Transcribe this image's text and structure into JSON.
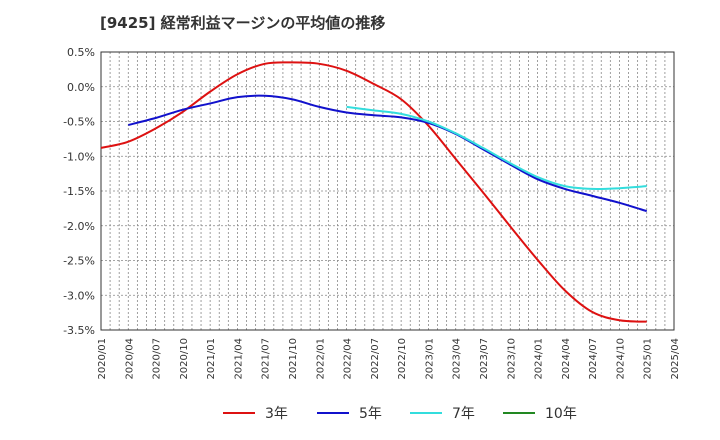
{
  "chart_data": {
    "type": "line",
    "title": "[9425]  経常利益マージンの平均値の推移",
    "xlabel": "",
    "ylabel": "",
    "ylim": [
      -3.5,
      0.5
    ],
    "yticks": [
      "0.5%",
      "0.0%",
      "-0.5%",
      "-1.0%",
      "-1.5%",
      "-2.0%",
      "-2.5%",
      "-3.0%",
      "-3.5%"
    ],
    "xticks": [
      "2020/01",
      "2020/04",
      "2020/07",
      "2020/10",
      "2021/01",
      "2021/04",
      "2021/07",
      "2021/10",
      "2022/01",
      "2022/04",
      "2022/07",
      "2022/10",
      "2023/01",
      "2023/04",
      "2023/07",
      "2023/10",
      "2024/01",
      "2024/04",
      "2024/07",
      "2024/10",
      "2025/01",
      "2025/04"
    ],
    "grid": true,
    "legend_position": "bottom",
    "series": [
      {
        "name": "3年",
        "color": "#dd1111",
        "points": [
          [
            "2020/01",
            -0.88
          ],
          [
            "2020/04",
            -0.79
          ],
          [
            "2020/07",
            -0.6
          ],
          [
            "2020/10",
            -0.36
          ],
          [
            "2021/01",
            -0.07
          ],
          [
            "2021/04",
            0.18
          ],
          [
            "2021/07",
            0.33
          ],
          [
            "2021/10",
            0.35
          ],
          [
            "2022/01",
            0.33
          ],
          [
            "2022/04",
            0.23
          ],
          [
            "2022/07",
            0.04
          ],
          [
            "2022/10",
            -0.18
          ],
          [
            "2023/01",
            -0.56
          ],
          [
            "2023/04",
            -1.04
          ],
          [
            "2023/07",
            -1.52
          ],
          [
            "2023/10",
            -2.01
          ],
          [
            "2024/01",
            -2.49
          ],
          [
            "2024/04",
            -2.93
          ],
          [
            "2024/07",
            -3.24
          ],
          [
            "2024/10",
            -3.36
          ],
          [
            "2025/01",
            -3.38
          ]
        ]
      },
      {
        "name": "5年",
        "color": "#1111cc",
        "points": [
          [
            "2020/04",
            -0.55
          ],
          [
            "2020/07",
            -0.45
          ],
          [
            "2020/10",
            -0.33
          ],
          [
            "2021/01",
            -0.24
          ],
          [
            "2021/04",
            -0.15
          ],
          [
            "2021/07",
            -0.13
          ],
          [
            "2021/10",
            -0.18
          ],
          [
            "2022/01",
            -0.29
          ],
          [
            "2022/04",
            -0.37
          ],
          [
            "2022/07",
            -0.41
          ],
          [
            "2022/10",
            -0.44
          ],
          [
            "2023/01",
            -0.52
          ],
          [
            "2023/04",
            -0.68
          ],
          [
            "2023/07",
            -0.9
          ],
          [
            "2023/10",
            -1.12
          ],
          [
            "2024/01",
            -1.33
          ],
          [
            "2024/04",
            -1.47
          ],
          [
            "2024/07",
            -1.57
          ],
          [
            "2024/10",
            -1.67
          ],
          [
            "2025/01",
            -1.79
          ]
        ]
      },
      {
        "name": "7年",
        "color": "#33dddd",
        "points": [
          [
            "2022/04",
            -0.29
          ],
          [
            "2022/07",
            -0.34
          ],
          [
            "2022/10",
            -0.39
          ],
          [
            "2023/01",
            -0.5
          ],
          [
            "2023/04",
            -0.67
          ],
          [
            "2023/07",
            -0.88
          ],
          [
            "2023/10",
            -1.1
          ],
          [
            "2024/01",
            -1.3
          ],
          [
            "2024/04",
            -1.43
          ],
          [
            "2024/07",
            -1.47
          ],
          [
            "2024/10",
            -1.46
          ],
          [
            "2025/01",
            -1.43
          ]
        ]
      },
      {
        "name": "10年",
        "color": "#228822",
        "points": []
      }
    ]
  }
}
